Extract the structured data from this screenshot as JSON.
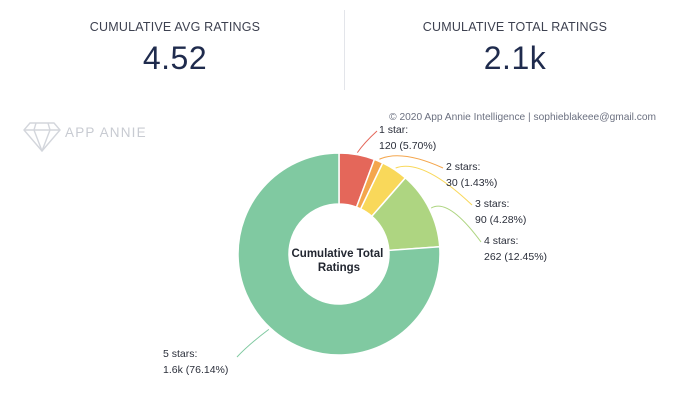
{
  "kpis": {
    "avg_label": "CUMULATIVE AVG RATINGS",
    "avg_value": "4.52",
    "total_label": "CUMULATIVE TOTAL RATINGS",
    "total_value": "2.1k"
  },
  "watermark": {
    "brand": "APP ANNIE",
    "copyright": "© 2020 App Annie Intelligence | sophieblakeee@gmail.com"
  },
  "chart_data": {
    "type": "pie",
    "title": "Cumulative Total Ratings",
    "slices": [
      {
        "label": "1 star:",
        "value_text": "120 (5.70%)",
        "value": 120,
        "percent": 5.7,
        "color": "#e4675a"
      },
      {
        "label": "2 stars:",
        "value_text": "30 (1.43%)",
        "value": 30,
        "percent": 1.43,
        "color": "#f4a64d"
      },
      {
        "label": "3 stars:",
        "value_text": "90 (4.28%)",
        "value": 90,
        "percent": 4.28,
        "color": "#f9d85a"
      },
      {
        "label": "4 stars:",
        "value_text": "262 (12.45%)",
        "value": 262,
        "percent": 12.45,
        "color": "#aed581"
      },
      {
        "label": "5 stars:",
        "value_text": "1.6k (76.14%)",
        "value": 1600,
        "percent": 76.14,
        "color": "#80c9a1"
      }
    ]
  }
}
